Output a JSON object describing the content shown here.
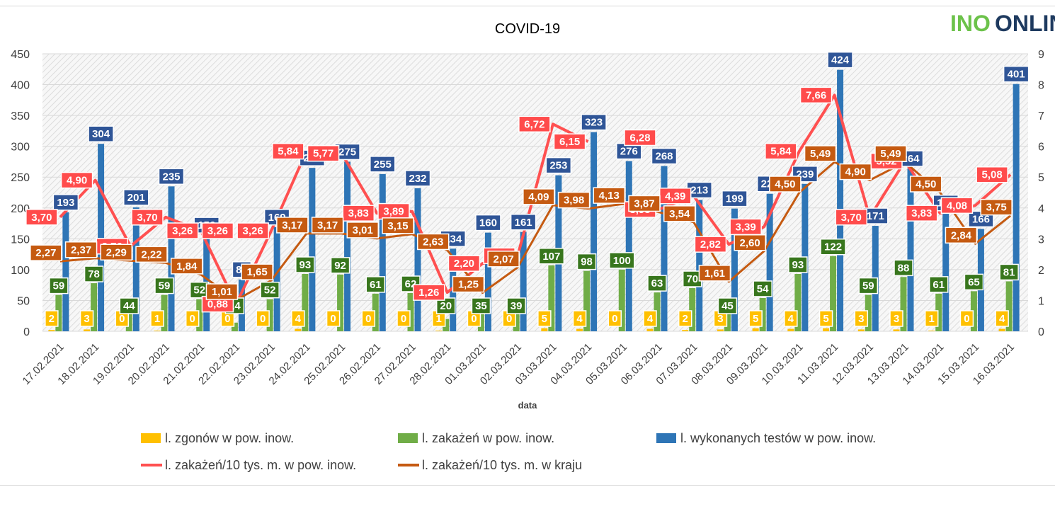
{
  "logo": {
    "part1": "INO",
    "part2": "ONLIN"
  },
  "colors": {
    "deaths": "#ffc000",
    "infections": "#70ad47",
    "tests": "#2e75b6",
    "local_rate": "#ff5050",
    "country_rate": "#c55a11",
    "local_rate_box": "#ff4b4b",
    "deaths_box": "#ffc000",
    "infections_box": "#38761d",
    "tests_box": "#2f5597",
    "country_box": "#c55a11"
  },
  "chart_data": {
    "type": "bar",
    "title": "COVID-19",
    "xlabel": "data",
    "ylabel": "",
    "ylabel2": "",
    "ylim": [
      0,
      450
    ],
    "ylim2": [
      0,
      9
    ],
    "yticks": [
      "0",
      "50",
      "100",
      "150",
      "200",
      "250",
      "300",
      "350",
      "400",
      "450"
    ],
    "yticks2": [
      "0",
      "1",
      "2",
      "3",
      "4",
      "5",
      "6",
      "7",
      "8",
      "9"
    ],
    "categories": [
      "17.02.2021",
      "18.02.2021",
      "19.02.2021",
      "20.02.2021",
      "21.02.2021",
      "22.02.2021",
      "23.02.2021",
      "24.02.2021",
      "25.02.2021",
      "26.02.2021",
      "27.02.2021",
      "28.02.2021",
      "01.03.2021",
      "02.03.2021",
      "03.03.2021",
      "04.03.2021",
      "05.03.2021",
      "06.03.2021",
      "07.03.2021",
      "08.03.2021",
      "09.03.2021",
      "10.03.2021",
      "11.03.2021",
      "12.03.2021",
      "13.03.2021",
      "14.03.2021",
      "15.03.2021",
      "16.03.2021"
    ],
    "series": [
      {
        "name": "l. zgonów w pow. inow.",
        "type": "bar",
        "axis": "left",
        "values": [
          2,
          3,
          0,
          1,
          0,
          0,
          0,
          4,
          0,
          0,
          0,
          1,
          0,
          0,
          5,
          4,
          0,
          4,
          2,
          3,
          5,
          4,
          5,
          3,
          3,
          1,
          0,
          4
        ],
        "labels": [
          "2",
          "3",
          "0",
          "1",
          "0",
          "0",
          "0",
          "4",
          "0",
          "0",
          "0",
          "1",
          "0",
          "0",
          "5",
          "4",
          "0",
          "4",
          "2",
          "3",
          "5",
          "4",
          "5",
          "3",
          "3",
          "1",
          "0",
          "4"
        ]
      },
      {
        "name": "l. zakażeń w pow. inow.",
        "type": "bar",
        "axis": "left",
        "values": [
          59,
          78,
          44,
          59,
          52,
          14,
          52,
          93,
          92,
          61,
          62,
          20,
          35,
          39,
          107,
          98,
          100,
          63,
          70,
          45,
          54,
          93,
          122,
          59,
          88,
          61,
          65,
          81
        ],
        "labels": [
          "59",
          "78",
          "44",
          "59",
          "52",
          "14",
          "52",
          "93",
          "92",
          "61",
          "62",
          "20",
          "35",
          "39",
          "107",
          "98",
          "100",
          "63",
          "70",
          "45",
          "54",
          "93",
          "122",
          "59",
          "88",
          "61",
          "65",
          "81"
        ]
      },
      {
        "name": "l. wykonanych testów w pow. inow.",
        "type": "bar",
        "axis": "left",
        "values": [
          193,
          304,
          201,
          235,
          156,
          84,
          169,
          265,
          275,
          255,
          232,
          134,
          160,
          161,
          253,
          323,
          276,
          268,
          213,
          199,
          223,
          239,
          424,
          171,
          264,
          192,
          166,
          401
        ],
        "labels": [
          "193",
          "304",
          "201",
          "235",
          "156",
          "84",
          "169",
          "265",
          "275",
          "255",
          "232",
          "134",
          "160",
          "161",
          "253",
          "323",
          "276",
          "268",
          "213",
          "199",
          "223",
          "239",
          "424",
          "171",
          "264",
          "192",
          "166",
          "401"
        ]
      },
      {
        "name": "l. zakażeń/10 tys. m. w pow. inow.",
        "type": "line",
        "axis": "right",
        "values": [
          3.7,
          4.9,
          2.76,
          3.7,
          3.26,
          0.88,
          3.26,
          5.84,
          5.77,
          3.83,
          3.89,
          1.26,
          2.2,
          2.45,
          6.72,
          6.15,
          null,
          3.95,
          4.39,
          2.82,
          3.39,
          5.84,
          7.66,
          3.7,
          5.52,
          3.83,
          4.08,
          5.08
        ],
        "labels": [
          "3,70",
          "4,90",
          "2,76",
          "3,70",
          "3,26",
          "0,88",
          "3,26",
          "5,84",
          "5,77",
          "3,83",
          "3,89",
          "1,26",
          "2,20",
          "2,45",
          "6,72",
          "6,15",
          "",
          "3,95",
          "4,39",
          "2,82",
          "3,39",
          "5,84",
          "7,66",
          "3,70",
          "5,52",
          "3,83",
          "4,08",
          "5,08"
        ],
        "extra_labels": [
          {
            "index": 5,
            "text": "3,26",
            "value": 3.26
          },
          {
            "index": 17,
            "text": "6,28",
            "value": 6.28
          }
        ]
      },
      {
        "name": "l. zakażeń/10 tys. m. w kraju",
        "type": "line",
        "axis": "right",
        "values": [
          2.27,
          2.37,
          2.29,
          2.22,
          1.84,
          1.01,
          1.65,
          3.17,
          3.17,
          3.01,
          3.15,
          2.63,
          1.25,
          2.07,
          4.09,
          3.98,
          4.13,
          3.87,
          3.54,
          1.61,
          2.6,
          4.5,
          5.49,
          4.9,
          5.49,
          4.5,
          2.84,
          3.75
        ],
        "labels": [
          "2,27",
          "2,37",
          "2,29",
          "2,22",
          "1,84",
          "1,01",
          "1,65",
          "3,17",
          "3,17",
          "3,01",
          "3,15",
          "2,63",
          "1,25",
          "2,07",
          "4,09",
          "3,98",
          "4,13",
          "3,87",
          "3,54",
          "1,61",
          "2,60",
          "4,50",
          "5,49",
          "4,90",
          "5,49",
          "4,50",
          "2,84",
          "3,75"
        ]
      }
    ],
    "legend": [
      {
        "label": "l. zgonów w pow. inow.",
        "kind": "bar",
        "color": "#ffc000"
      },
      {
        "label": "l. zakażeń w pow. inow.",
        "kind": "bar",
        "color": "#70ad47"
      },
      {
        "label": "l. wykonanych testów w pow. inow.",
        "kind": "bar",
        "color": "#2e75b6"
      },
      {
        "label": "l. zakażeń/10 tys. m. w pow. inow.",
        "kind": "line",
        "color": "#ff5050"
      },
      {
        "label": "l. zakażeń/10 tys. m. w kraju",
        "kind": "line",
        "color": "#c55a11"
      }
    ],
    "legend_position": "bottom",
    "grid": true
  }
}
